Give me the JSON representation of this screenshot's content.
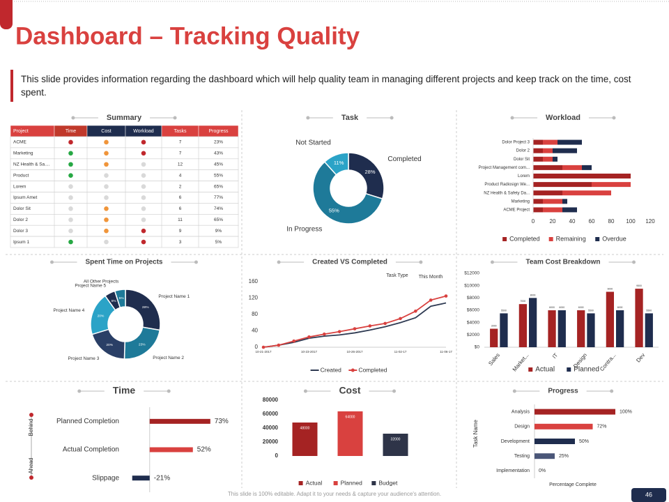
{
  "header": {
    "title": "Dashboard – Tracking Quality",
    "description": "This slide provides information regarding the dashboard which will help quality team in managing different projects and keep track on the time, cost spent."
  },
  "summary": {
    "title": "Summary",
    "columns": [
      "Project",
      "Time",
      "Cost",
      "Workload",
      "Tasks",
      "Progress"
    ],
    "rows": [
      [
        "ACME",
        "red",
        "orange",
        "red",
        "7",
        "23%"
      ],
      [
        "Marketing",
        "green",
        "orange",
        "red",
        "7",
        "43%"
      ],
      [
        "NZ Health & Sa....",
        "green",
        "orange",
        "grey",
        "12",
        "45%"
      ],
      [
        "Product",
        "green",
        "grey",
        "grey",
        "4",
        "55%"
      ],
      [
        "Lorem",
        "grey",
        "grey",
        "grey",
        "2",
        "65%"
      ],
      [
        "Ipsum Amet",
        "grey",
        "grey",
        "grey",
        "6",
        "77%"
      ],
      [
        "Dolor Sit",
        "grey",
        "orange",
        "grey",
        "6",
        "74%"
      ],
      [
        "Dolor 2",
        "grey",
        "orange",
        "grey",
        "11",
        "65%"
      ],
      [
        "Dolor 3",
        "grey",
        "orange",
        "red",
        "9",
        "9%"
      ],
      [
        "Ipsum 1",
        "green",
        "grey",
        "red",
        "3",
        "5%"
      ]
    ]
  },
  "chart_data": [
    {
      "type": "donut",
      "title": "Task",
      "categories": [
        "Completed",
        "In Progress",
        "Not Started"
      ],
      "values": [
        28,
        55,
        11
      ],
      "value_labels": [
        "28%",
        "55%",
        "11%"
      ],
      "colors": [
        "#1f2d4e",
        "#1e7a99",
        "#2ba3c7"
      ]
    },
    {
      "type": "hbar-stacked",
      "title": "Workload",
      "categories": [
        "Dolor Project 3",
        "Dolor 2",
        "Dolor Sit",
        "Project Management com...",
        "Lorem",
        "Product Radiosign We...",
        "NZ Health & Safety Da...",
        "Marketing",
        "ACME Project"
      ],
      "series": [
        {
          "name": "Completed",
          "color": "#a52323",
          "values": [
            10,
            10,
            10,
            30,
            100,
            60,
            30,
            10,
            10
          ]
        },
        {
          "name": "Remaining",
          "color": "#d9413f",
          "values": [
            15,
            10,
            10,
            20,
            0,
            40,
            50,
            20,
            20
          ]
        },
        {
          "name": "Overdue",
          "color": "#1f2d4e",
          "values": [
            25,
            25,
            5,
            10,
            0,
            0,
            0,
            5,
            15
          ]
        }
      ],
      "xlim": [
        0,
        120
      ],
      "xticks": [
        0,
        20,
        40,
        60,
        80,
        100,
        120
      ]
    },
    {
      "type": "donut",
      "title": "Spent Time on Projects",
      "categories": [
        "Project Name 1",
        "Project Name 2",
        "Project Name 3",
        "Project Name 4",
        "Project Name 5",
        "All Other Projects"
      ],
      "values": [
        28,
        23,
        20,
        20,
        5,
        5
      ],
      "value_labels": [
        "28%",
        "23%",
        "20%",
        "20%",
        "5%",
        "5%"
      ],
      "colors": [
        "#1f2d4e",
        "#1e7a99",
        "#2a3f66",
        "#2ba3c7",
        "#1f2d4e",
        "#1e7a99"
      ]
    },
    {
      "type": "line",
      "title": "Created VS Completed",
      "categories": [
        "10-21-2017",
        null,
        null,
        "10-23-2017",
        null,
        null,
        "10-26-2017",
        null,
        null,
        "11-02-17",
        null,
        null,
        "11-06-17"
      ],
      "series": [
        {
          "name": "Created",
          "color": "#2e3a52",
          "values": [
            0,
            5,
            12,
            22,
            27,
            30,
            35,
            42,
            50,
            60,
            72,
            100,
            108
          ]
        },
        {
          "name": "Completed",
          "color": "#d9413f",
          "marker": "circle",
          "values": [
            0,
            5,
            15,
            25,
            32,
            38,
            45,
            52,
            58,
            70,
            88,
            115,
            125
          ]
        }
      ],
      "ylim": [
        0,
        160
      ],
      "yticks": [
        0,
        40,
        80,
        120,
        160
      ],
      "annotations": [
        "Task Type",
        "This Month"
      ]
    },
    {
      "type": "bar-grouped",
      "title": "Team Cost Breakdown",
      "categories": [
        "Sales",
        "Market...",
        "IT",
        "Design",
        "Contra...",
        "Dev"
      ],
      "series": [
        {
          "name": "Actual",
          "color": "#a52323",
          "values": [
            3000,
            7000,
            6000,
            6000,
            9000,
            9500
          ]
        },
        {
          "name": "Planned",
          "color": "#1f2d4e",
          "values": [
            5500,
            8000,
            6000,
            5500,
            6000,
            5500
          ]
        }
      ],
      "ylim": [
        0,
        12000
      ],
      "yticks": [
        {
          "value": 0,
          "label": "$0"
        },
        {
          "value": 2000,
          "label": "$2000"
        },
        {
          "value": 4000,
          "label": "$4000"
        },
        {
          "value": 6000,
          "label": "$6000"
        },
        {
          "value": 8000,
          "label": "$8000"
        },
        {
          "value": 10000,
          "label": "$10000"
        },
        {
          "value": 12000,
          "label": "$12000"
        }
      ]
    },
    {
      "type": "hbar",
      "title": "Time",
      "categories": [
        "Planned Completion",
        "Actual Completion",
        "Slippage"
      ],
      "values": [
        73,
        52,
        -21
      ],
      "value_labels": [
        "73%",
        "52%",
        "-21%"
      ],
      "colors": [
        "#a52323",
        "#d9413f",
        "#1f2d4e"
      ],
      "xlim": [
        -30,
        100
      ],
      "annotations": [
        "Behind",
        "Ahead"
      ]
    },
    {
      "type": "bar",
      "title": "Cost",
      "categories": [
        "Actual",
        "Planned",
        "Budget"
      ],
      "values": [
        48000,
        64000,
        32000
      ],
      "colors": [
        "#a52323",
        "#d9413f",
        "#2e3448"
      ],
      "ylim": [
        0,
        80000
      ],
      "yticks": [
        0,
        20000,
        40000,
        60000,
        80000
      ]
    },
    {
      "type": "hbar",
      "title": "Progress",
      "categories": [
        "Analysis",
        "Design",
        "Development",
        "Testing",
        "Implementation"
      ],
      "values": [
        100,
        72,
        50,
        25,
        0
      ],
      "value_labels": [
        "100%",
        "72%",
        "50%",
        "25%",
        "0%"
      ],
      "colors": [
        "#a52323",
        "#d9413f",
        "#1f2d4e",
        "#4a5678",
        "#4a5678"
      ],
      "xlim": [
        0,
        100
      ],
      "ylabel": "Task Name",
      "xlabel": "Percentage Complete"
    }
  ],
  "footer": {
    "note": "This slide is 100% editable. Adapt it to your needs & capture your audience's attention.",
    "page": "46"
  }
}
